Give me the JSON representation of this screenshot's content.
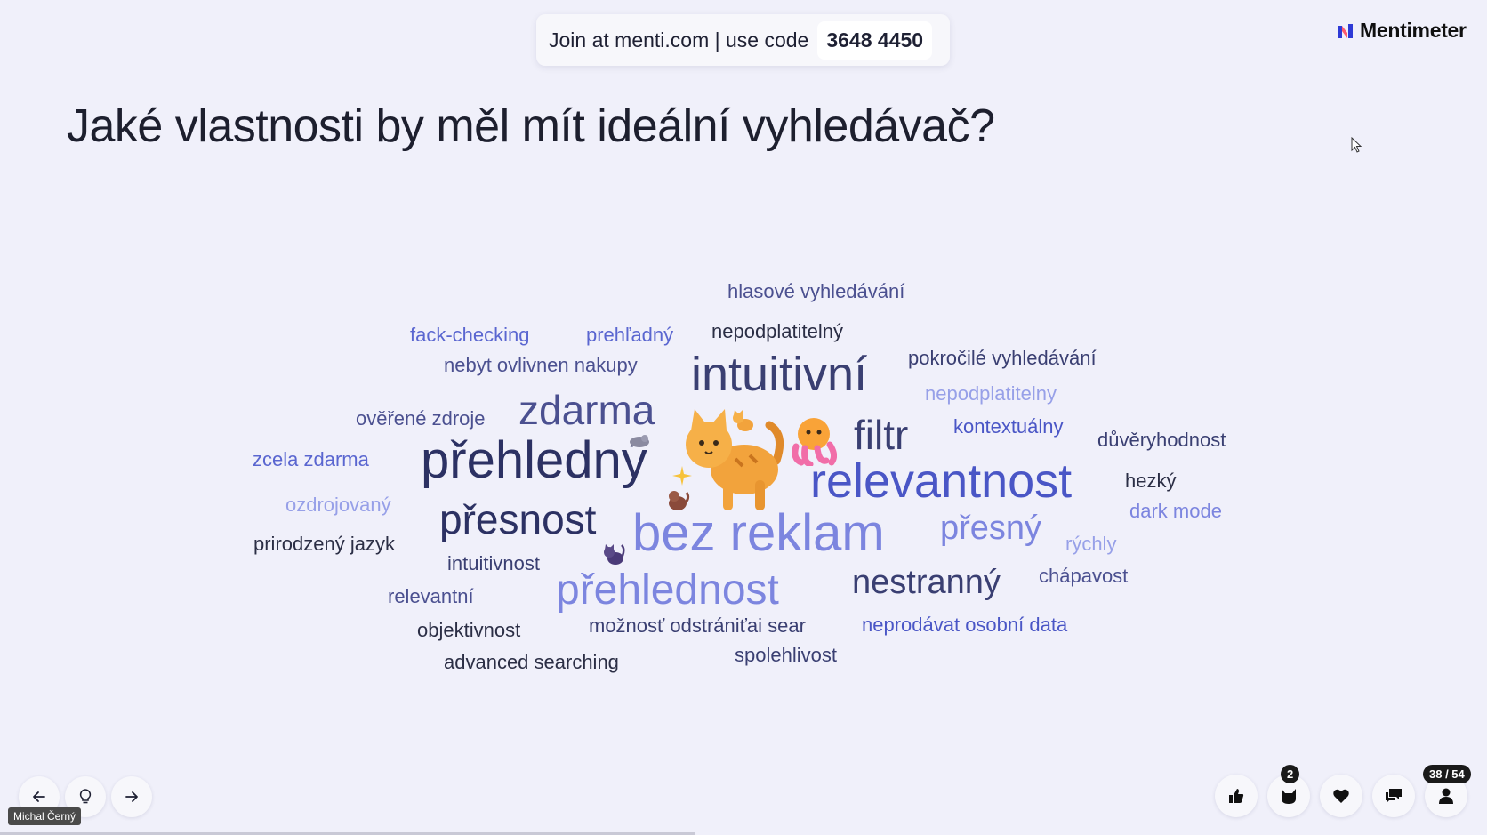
{
  "join": {
    "text": "Join at menti.com | use code",
    "code": "3648 4450"
  },
  "brand": {
    "name": "Mentimeter"
  },
  "question": "Jaké vlastnosti by měl mít ideální vyhledávač?",
  "words": [
    "hlasové vyhledávání",
    "fack-checking",
    "prehľadný",
    "nepodplatitelný",
    "nebyt ovlivnen nakupy",
    "intuitivní",
    "pokročilé vyhledávání",
    "nepodplatitelny",
    "ověřené zdroje",
    "zdarma",
    "filtr",
    "kontextuálny",
    "důvěryhodnost",
    "zcela zdarma",
    "přehledný",
    "relevantnost",
    "hezký",
    "ozdrojovaný",
    "přesnost",
    "dark mode",
    "bez reklam",
    "přesný",
    "prirodzený jazyk",
    "rýchly",
    "intuitivnost",
    "přehlednost",
    "nestranný",
    "chápavost",
    "relevantní",
    "objektivnost",
    "možnosť odstrániťai sear",
    "neprodávat osobní data",
    "spolehlivost",
    "advanced searching"
  ],
  "presenter": {
    "name": "Michal Černý"
  },
  "controls": {
    "back_icon": "arrow-left-icon",
    "hint_icon": "lightbulb-icon",
    "next_icon": "arrow-right-icon"
  },
  "reactions": {
    "count": "2",
    "slide_counter": "38 / 54"
  },
  "colors": {
    "background": "#f0f0fa",
    "accent": "#4a56c6"
  }
}
